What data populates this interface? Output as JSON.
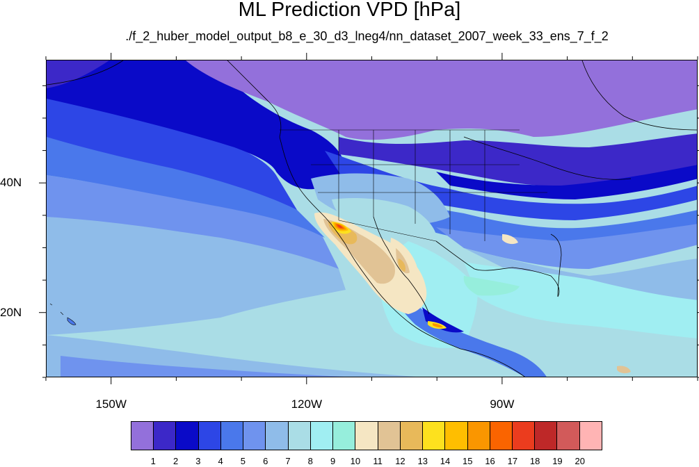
{
  "title": "ML Prediction VPD [hPa]",
  "subtitle": "./f_2_huber_model_output_b8_e_30_d3_lneg4/nn_dataset_2007_week_33_ens_7_f_2",
  "map": {
    "projection": "cylindrical equidistant",
    "lon_range": [
      -160,
      -60
    ],
    "lat_range": [
      10,
      59
    ],
    "x_ticks": [
      {
        "lon": -150,
        "label": "150W"
      },
      {
        "lon": -120,
        "label": "120W"
      },
      {
        "lon": -90,
        "label": "90W"
      }
    ],
    "y_ticks": [
      {
        "lat": 40,
        "label": "40N"
      },
      {
        "lat": 20,
        "label": "20N"
      }
    ]
  },
  "colorbar": {
    "colors": [
      "#9370db",
      "#3c28c8",
      "#0a0ac8",
      "#2d46e6",
      "#4a78eb",
      "#6f93ee",
      "#8fbce9",
      "#aadde6",
      "#a0eef2",
      "#96eedc",
      "#f5e6c3",
      "#e1c395",
      "#e8b95a",
      "#fde11e",
      "#ffbe00",
      "#fa9600",
      "#fa6400",
      "#eb3c1e",
      "#be2828",
      "#d25a5a",
      "#ffb4b4"
    ],
    "levels": [
      "1",
      "2",
      "3",
      "4",
      "5",
      "6",
      "7",
      "8",
      "9",
      "10",
      "11",
      "12",
      "13",
      "14",
      "15",
      "16",
      "17",
      "18",
      "19",
      "20"
    ]
  }
}
